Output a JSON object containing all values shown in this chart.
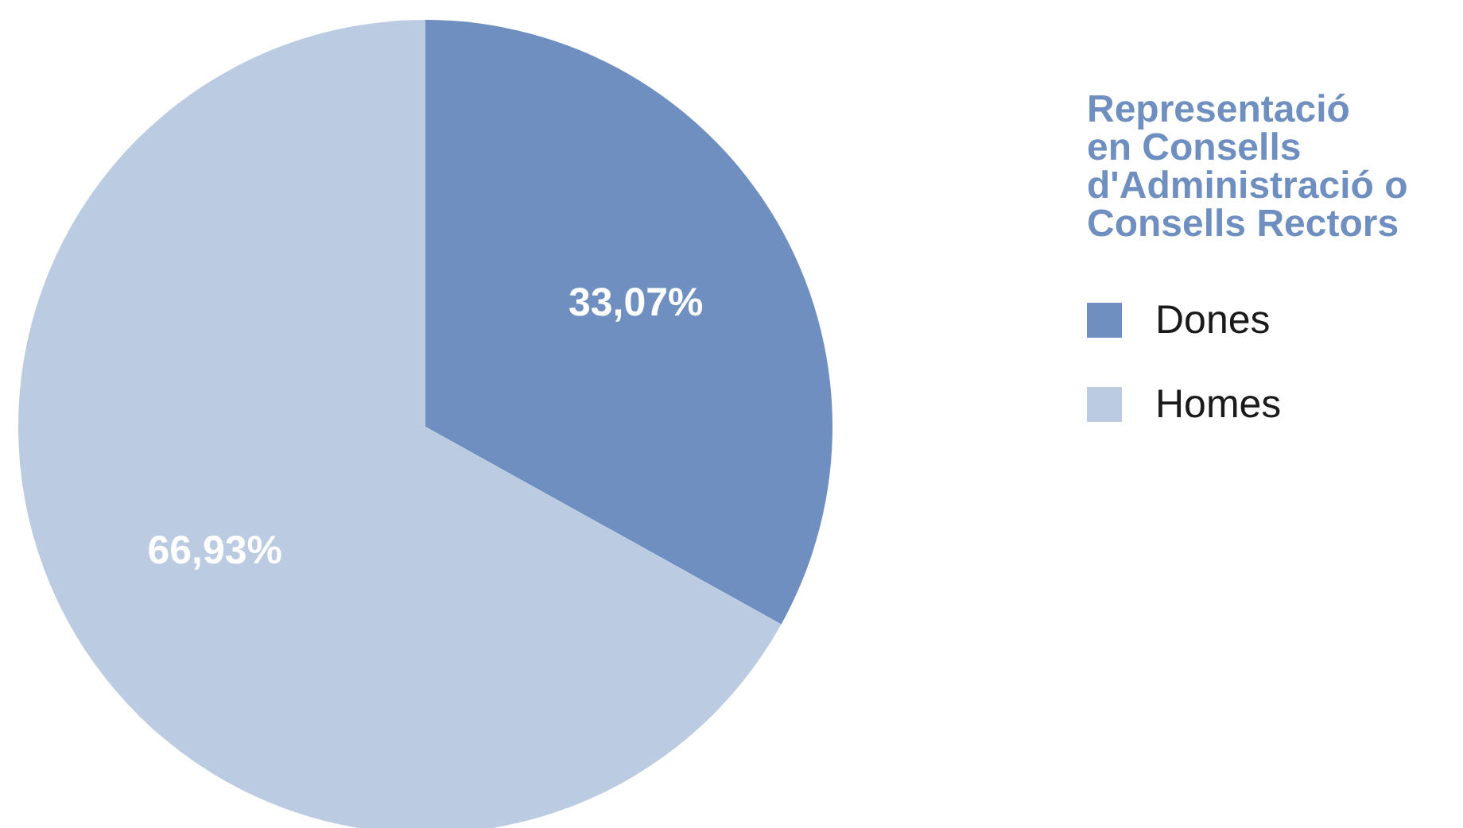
{
  "chart_data": {
    "type": "pie",
    "legend_title": "Representació\nen Consells\nd'Administració o\nConsells Rectors",
    "categories": [
      "Dones",
      "Homes"
    ],
    "values": [
      33.07,
      66.93
    ],
    "value_labels": [
      "33,07%",
      "66,93%"
    ],
    "colors": [
      "#6e8fc0",
      "#bacbe2"
    ],
    "legend": "right"
  }
}
